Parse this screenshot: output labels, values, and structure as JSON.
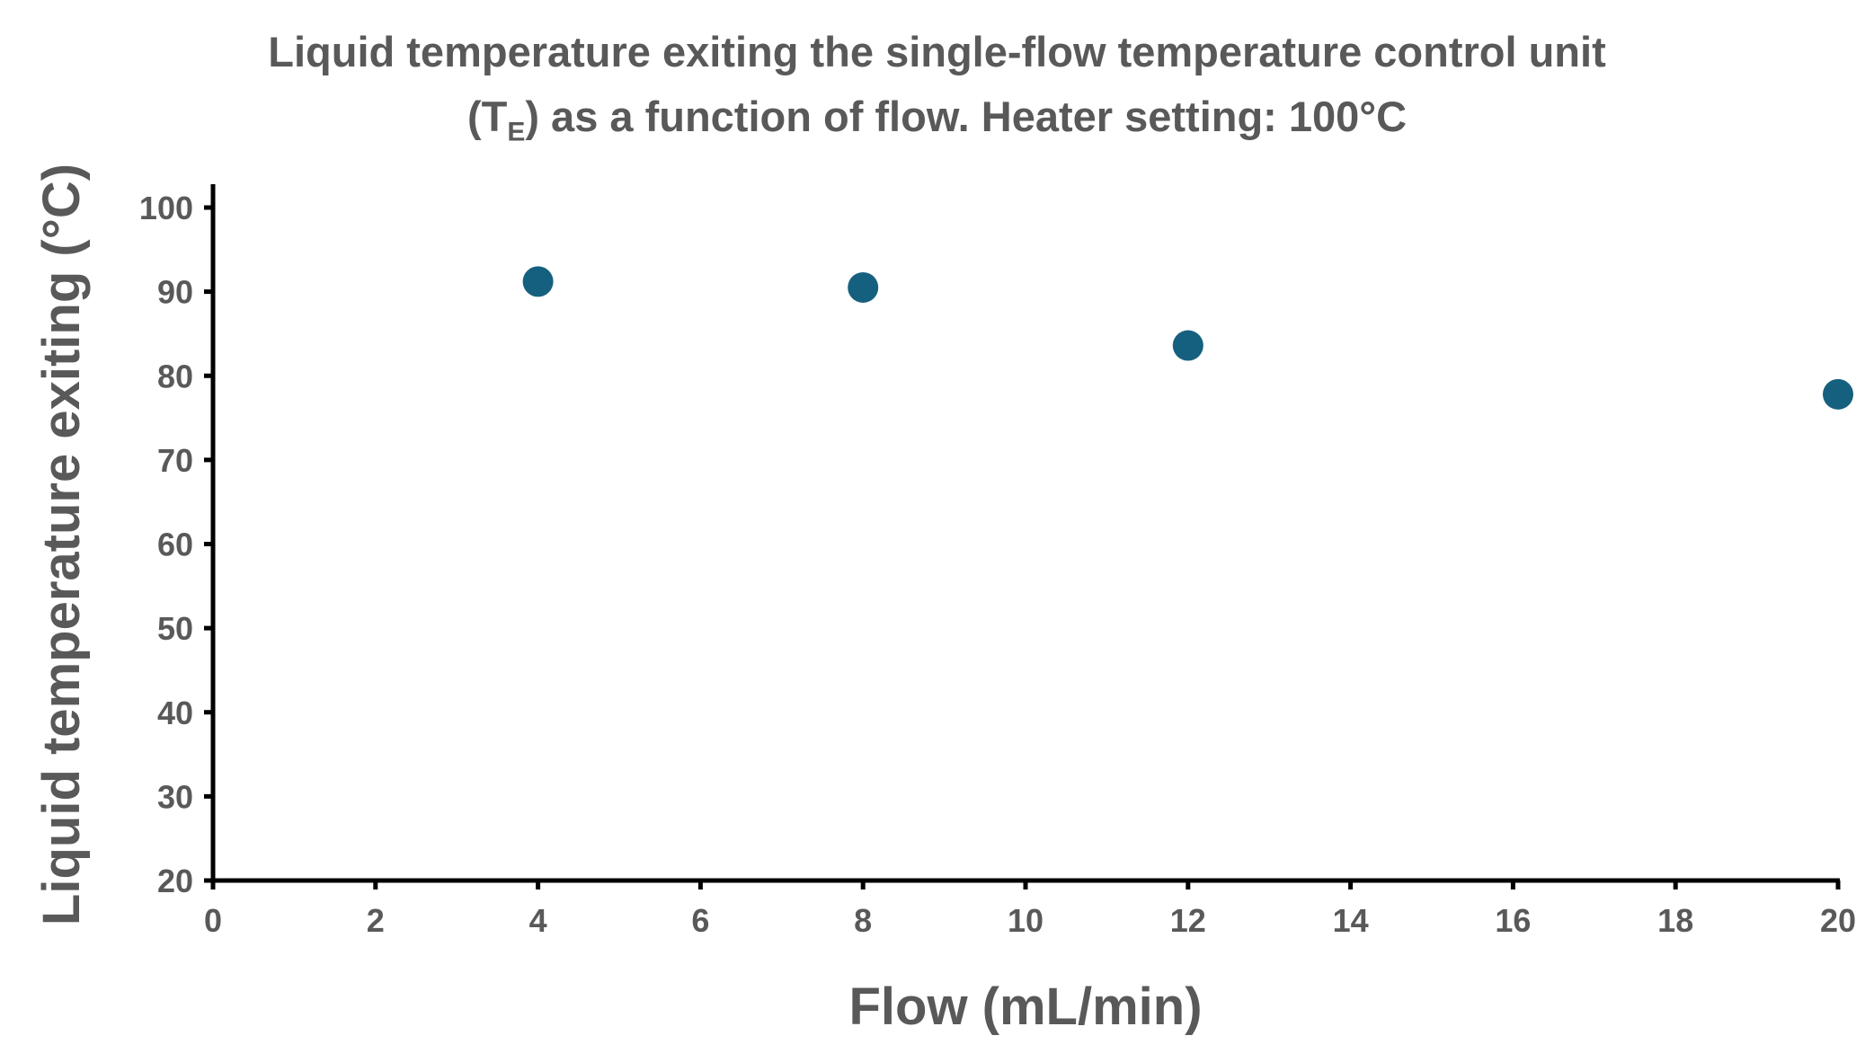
{
  "chart_data": {
    "type": "scatter",
    "title_line1": "Liquid temperature exiting the single-flow temperature control unit",
    "title_line2_prefix": "(T",
    "title_line2_sub": "E",
    "title_line2_suffix": ") as a function of flow.  Heater setting: 100°C",
    "xlabel": "Flow (mL/min)",
    "ylabel": "Liquid temperature exiting  (°C)",
    "xlim": [
      0,
      20
    ],
    "ylim": [
      20,
      100
    ],
    "xticks": [
      "0",
      "2",
      "4",
      "6",
      "8",
      "10",
      "12",
      "14",
      "16",
      "18",
      "20"
    ],
    "yticks": [
      "20",
      "30",
      "40",
      "50",
      "60",
      "70",
      "80",
      "90",
      "100"
    ],
    "grid": false,
    "series": [
      {
        "name": "T_E",
        "color": "#16607f",
        "x": [
          4,
          8,
          12,
          20
        ],
        "y": [
          91.2,
          90.5,
          83.6,
          77.8
        ]
      }
    ]
  }
}
